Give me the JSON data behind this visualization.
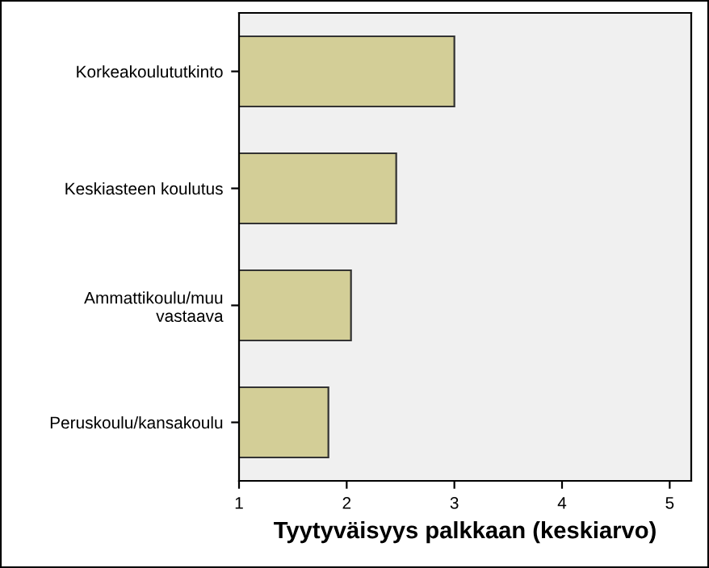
{
  "chart_data": {
    "type": "bar",
    "orientation": "horizontal",
    "xlabel": "Tyytyväisyys palkkaan (keskiarvo)",
    "categories": [
      "Korkeakoulututkinto",
      "Keskiasteen koulutus",
      "Ammattikoulu/muu\nvastaava",
      "Peruskoulu/kansakoulu"
    ],
    "values": [
      3.0,
      2.46,
      2.04,
      1.83
    ],
    "color": "#d3ce97",
    "xlim": [
      1,
      5.2
    ],
    "xticks": [
      1,
      2,
      3,
      4,
      5
    ],
    "grid": false,
    "legend": false
  }
}
